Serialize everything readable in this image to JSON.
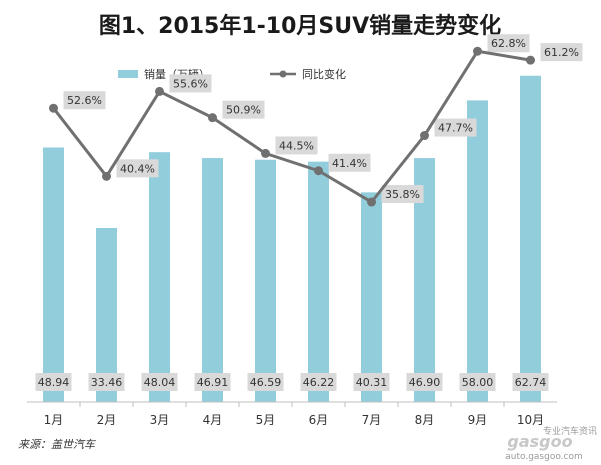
{
  "chart_data": {
    "type": "bar",
    "title": "图1、2015年1-10月SUV销量走势变化",
    "categories": [
      "1月",
      "2月",
      "3月",
      "4月",
      "5月",
      "6月",
      "7月",
      "8月",
      "9月",
      "10月"
    ],
    "series": [
      {
        "name": "销量（万辆）",
        "type": "bar",
        "values": [
          48.94,
          33.46,
          48.04,
          46.91,
          46.59,
          46.22,
          40.31,
          46.9,
          58.0,
          62.74
        ],
        "labels": [
          "48.94",
          "33.46",
          "48.04",
          "46.91",
          "46.59",
          "46.22",
          "40.31",
          "46.90",
          "58.00",
          "62.74"
        ],
        "color": "#92cddc"
      },
      {
        "name": "同比变化",
        "type": "line",
        "values": [
          52.6,
          40.4,
          55.6,
          50.9,
          44.5,
          41.4,
          35.8,
          47.7,
          62.8,
          61.2
        ],
        "labels": [
          "52.6%",
          "40.4%",
          "55.6%",
          "50.9%",
          "44.5%",
          "41.4%",
          "35.8%",
          "47.7%",
          "62.8%",
          "61.2%"
        ],
        "color": "#707070"
      }
    ],
    "bar_ylim": [
      0,
      70
    ],
    "line_ylim": [
      0,
      70
    ],
    "grid": false,
    "legend_position": "top-left"
  },
  "source_text": "来源：盖世汽车",
  "watermark": {
    "logo_text": "gasgoo",
    "tagline": "专业汽车资讯",
    "url": "auto.gasgoo.com"
  }
}
